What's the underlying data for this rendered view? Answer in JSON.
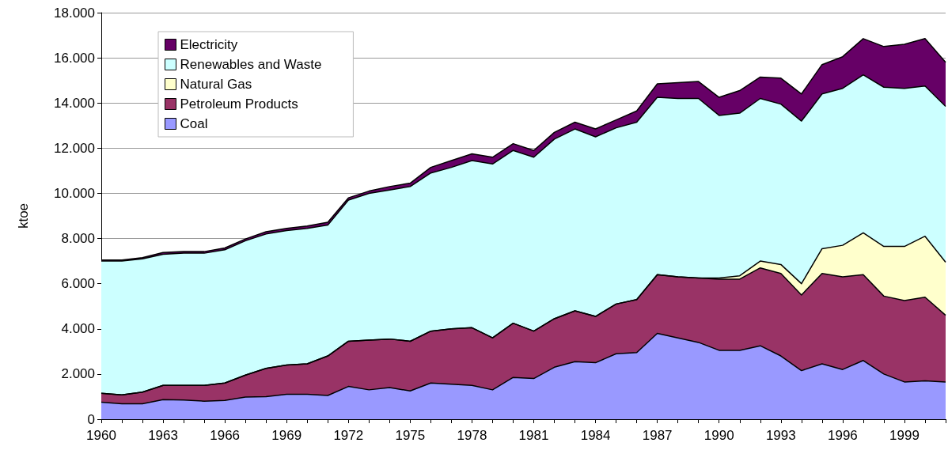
{
  "chart_data": {
    "type": "area",
    "stacked": true,
    "ylabel": "ktoe",
    "categories": [
      "1960",
      null,
      null,
      "1963",
      null,
      null,
      "1966",
      null,
      null,
      "1969",
      null,
      null,
      "1972",
      null,
      null,
      "1975",
      null,
      null,
      "1978",
      null,
      null,
      "1981",
      null,
      null,
      "1984",
      null,
      null,
      "1987",
      null,
      null,
      "1990",
      null,
      null,
      "1993",
      null,
      null,
      "1996",
      null,
      null,
      "1999",
      null,
      null
    ],
    "series": [
      {
        "name": "Coal",
        "color": "#9999ff",
        "values": [
          750,
          680,
          680,
          870,
          850,
          800,
          830,
          980,
          1000,
          1100,
          1100,
          1050,
          1450,
          1300,
          1400,
          1250,
          1600,
          1550,
          1500,
          1300,
          1850,
          1800,
          2300,
          2550,
          2500,
          2900,
          2950,
          3800,
          3600,
          3400,
          3050,
          3050,
          3250,
          2800,
          2150,
          2450,
          2200,
          2600,
          2000,
          1650,
          1700,
          1650
        ]
      },
      {
        "name": "Petroleum Products",
        "color": "#993366",
        "values": [
          400,
          400,
          520,
          630,
          650,
          700,
          770,
          970,
          1250,
          1300,
          1350,
          1750,
          2000,
          2200,
          2150,
          2200,
          2300,
          2450,
          2550,
          2300,
          2400,
          2100,
          2150,
          2250,
          2050,
          2200,
          2350,
          2600,
          2700,
          2850,
          3150,
          3150,
          3450,
          3650,
          3350,
          4000,
          4100,
          3800,
          3450,
          3600,
          3700,
          2950
        ]
      },
      {
        "name": "Natural Gas",
        "color": "#ffffcc",
        "values": [
          0,
          0,
          0,
          0,
          0,
          0,
          0,
          0,
          0,
          0,
          0,
          0,
          0,
          0,
          0,
          0,
          0,
          0,
          0,
          0,
          0,
          0,
          0,
          0,
          0,
          0,
          0,
          0,
          0,
          0,
          50,
          150,
          300,
          400,
          500,
          1100,
          1400,
          1850,
          2200,
          2400,
          2700,
          2350
        ]
      },
      {
        "name": "Renewables and Waste",
        "color": "#ccffff",
        "values": [
          5850,
          5920,
          5900,
          5800,
          5850,
          5850,
          5900,
          5950,
          5950,
          5950,
          6000,
          5800,
          6250,
          6500,
          6600,
          6850,
          7000,
          7150,
          7400,
          7700,
          7650,
          7700,
          7950,
          8050,
          7950,
          7800,
          7850,
          7850,
          7900,
          7950,
          7200,
          7200,
          7200,
          7100,
          7200,
          6850,
          6950,
          7000,
          7050,
          7000,
          6650,
          6900
        ]
      },
      {
        "name": "Electricity",
        "color": "#660066",
        "values": [
          50,
          50,
          50,
          80,
          70,
          70,
          80,
          80,
          100,
          100,
          100,
          120,
          100,
          100,
          150,
          150,
          250,
          300,
          300,
          300,
          300,
          300,
          300,
          300,
          350,
          350,
          500,
          600,
          700,
          750,
          800,
          1000,
          950,
          1150,
          1200,
          1300,
          1400,
          1600,
          1800,
          1950,
          2100,
          1950
        ]
      }
    ],
    "ylim": [
      0,
      18000
    ],
    "yticks": [
      0,
      {
        "value": 2000,
        "label": "2.000"
      },
      {
        "value": 4000,
        "label": "4.000"
      },
      {
        "value": 6000,
        "label": "6.000"
      },
      {
        "value": 8000,
        "label": "8.000"
      },
      {
        "value": 10000,
        "label": "10.000"
      },
      {
        "value": 12000,
        "label": "12.000"
      },
      {
        "value": 14000,
        "label": "14.000"
      },
      {
        "value": 16000,
        "label": "16.000"
      },
      {
        "value": 18000,
        "label": "18.000"
      }
    ],
    "grid": "y",
    "legend": "top left"
  }
}
